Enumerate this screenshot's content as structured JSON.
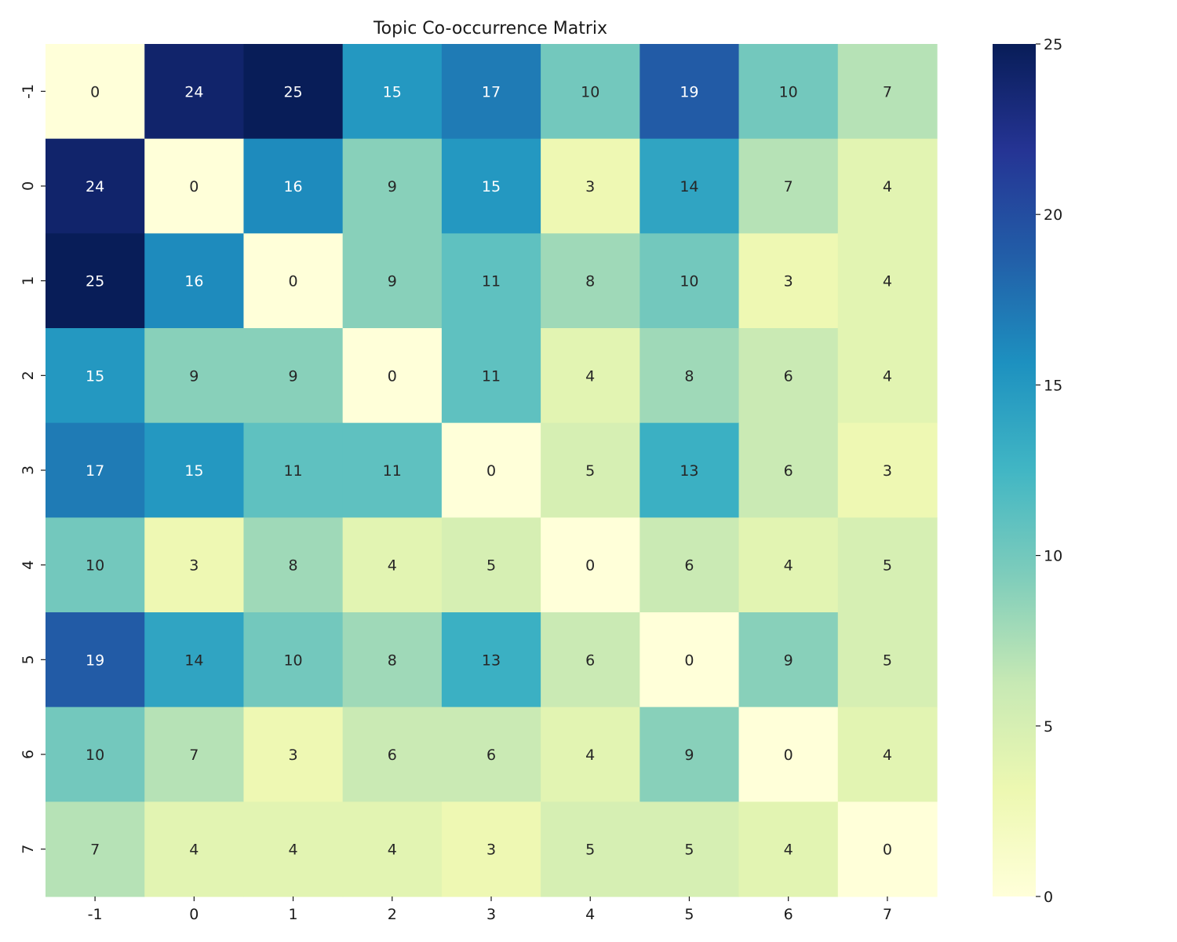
{
  "chart_data": {
    "type": "heatmap",
    "title": "Topic Co-occurrence Matrix",
    "xlabel": "",
    "ylabel": "",
    "x_categories": [
      "-1",
      "0",
      "1",
      "2",
      "3",
      "4",
      "5",
      "6",
      "7"
    ],
    "y_categories": [
      "-1",
      "0",
      "1",
      "2",
      "3",
      "4",
      "5",
      "6",
      "7"
    ],
    "values": [
      [
        0,
        24,
        25,
        15,
        17,
        10,
        19,
        10,
        7
      ],
      [
        24,
        0,
        16,
        9,
        15,
        3,
        14,
        7,
        4
      ],
      [
        25,
        16,
        0,
        9,
        11,
        8,
        10,
        3,
        4
      ],
      [
        15,
        9,
        9,
        0,
        11,
        4,
        8,
        6,
        4
      ],
      [
        17,
        15,
        11,
        11,
        0,
        5,
        13,
        6,
        3
      ],
      [
        10,
        3,
        8,
        4,
        5,
        0,
        6,
        4,
        5
      ],
      [
        19,
        14,
        10,
        8,
        13,
        6,
        0,
        9,
        5
      ],
      [
        10,
        7,
        3,
        6,
        6,
        4,
        9,
        0,
        4
      ],
      [
        7,
        4,
        4,
        4,
        3,
        5,
        5,
        4,
        0
      ]
    ],
    "colormap": "YlGnBu",
    "colorbar": {
      "range": [
        0,
        25
      ],
      "ticks": [
        0,
        5,
        10,
        15,
        20,
        25
      ]
    },
    "annotations": true,
    "legend": "colorbar right"
  },
  "colors": {
    "scale": [
      "#ffffd9",
      "#edf8b1",
      "#c7e9b4",
      "#7fcdbb",
      "#41b6c4",
      "#1d91c0",
      "#225ea8",
      "#253494",
      "#081d58"
    ],
    "text_dark": "#262626",
    "text_light": "#ffffff"
  }
}
